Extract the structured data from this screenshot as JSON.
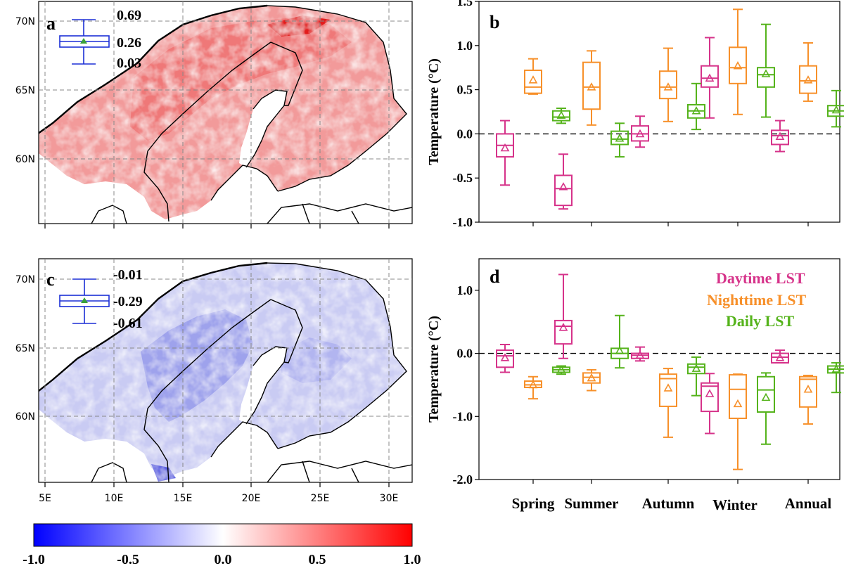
{
  "colors": {
    "daytime": "#d6338a",
    "nighttime": "#f7902a",
    "daily": "#55b31b",
    "inset_box": "#1b2fd6",
    "inset_mean": "#3aa13a",
    "warm": "#ff0000",
    "cool": "#0000ff"
  },
  "map_a": {
    "letter": "a",
    "mode": "warm",
    "inset": {
      "max": "0.69",
      "median": "0.26",
      "min": "0.03"
    }
  },
  "map_c": {
    "letter": "c",
    "mode": "cool",
    "inset": {
      "max": "-0.01",
      "median": "-0.29",
      "min": "-0.61"
    }
  },
  "map_axes": {
    "lat_labels": [
      "70N",
      "65N",
      "60N"
    ],
    "lat_values": [
      70,
      65,
      60
    ],
    "lon_labels": [
      "5E",
      "10E",
      "15E",
      "20E",
      "25E",
      "30E"
    ],
    "lon_values": [
      5,
      10,
      15,
      20,
      25,
      30
    ],
    "lon_range": [
      5,
      32
    ],
    "lat_range": [
      55,
      71
    ]
  },
  "colorbar": {
    "range": [
      -1.0,
      1.0
    ],
    "tick_labels": [
      "-1.0",
      "-0.5",
      "0.0",
      "0.5",
      "1.0"
    ],
    "tick_values": [
      -1.0,
      -0.5,
      0.0,
      0.5,
      1.0
    ]
  },
  "chart_data": [
    {
      "type": "box",
      "panel": "b",
      "ylabel": "Temperature (°C)",
      "ylim": [
        -1.0,
        1.5
      ],
      "yticks": [
        -1.0,
        -0.5,
        0.0,
        0.5,
        1.0,
        1.5
      ],
      "ytick_labels": [
        "-1.0",
        "-0.5",
        "0.0",
        "0.5",
        "1.0",
        "1.5"
      ],
      "reference_line": 0.0,
      "categories": [
        "Spring",
        "Summer",
        "Autumn",
        "Winter",
        "Annual"
      ],
      "series": [
        {
          "key": "daytime",
          "boxes": [
            {
              "min": -0.58,
              "q1": -0.26,
              "median": -0.13,
              "q3": 0.0,
              "max": 0.15,
              "mean": -0.16
            },
            {
              "min": -0.85,
              "q1": -0.81,
              "median": -0.62,
              "q3": -0.47,
              "max": -0.23,
              "mean": -0.6
            },
            {
              "min": -0.15,
              "q1": -0.08,
              "median": 0.0,
              "q3": 0.09,
              "max": 0.2,
              "mean": 0.0
            },
            {
              "min": 0.18,
              "q1": 0.53,
              "median": 0.63,
              "q3": 0.77,
              "max": 1.09,
              "mean": 0.63
            },
            {
              "min": -0.2,
              "q1": -0.12,
              "median": -0.02,
              "q3": 0.04,
              "max": 0.15,
              "mean": -0.03
            }
          ]
        },
        {
          "key": "nighttime",
          "boxes": [
            {
              "min": 0.45,
              "q1": 0.46,
              "median": 0.53,
              "q3": 0.72,
              "max": 0.85,
              "mean": 0.61
            },
            {
              "min": 0.1,
              "q1": 0.28,
              "median": 0.53,
              "q3": 0.81,
              "max": 0.94,
              "mean": 0.53
            },
            {
              "min": 0.14,
              "q1": 0.4,
              "median": 0.53,
              "q3": 0.71,
              "max": 0.97,
              "mean": 0.53
            },
            {
              "min": 0.22,
              "q1": 0.57,
              "median": 0.75,
              "q3": 0.98,
              "max": 1.41,
              "mean": 0.77
            },
            {
              "min": 0.37,
              "q1": 0.46,
              "median": 0.6,
              "q3": 0.77,
              "max": 1.03,
              "mean": 0.61
            }
          ]
        },
        {
          "key": "daily",
          "boxes": [
            {
              "min": 0.12,
              "q1": 0.15,
              "median": 0.19,
              "q3": 0.26,
              "max": 0.29,
              "mean": 0.21
            },
            {
              "min": -0.26,
              "q1": -0.12,
              "median": -0.06,
              "q3": 0.03,
              "max": 0.12,
              "mean": -0.05
            },
            {
              "min": 0.05,
              "q1": 0.18,
              "median": 0.26,
              "q3": 0.33,
              "max": 0.57,
              "mean": 0.26
            },
            {
              "min": 0.19,
              "q1": 0.53,
              "median": 0.67,
              "q3": 0.75,
              "max": 1.24,
              "mean": 0.68
            },
            {
              "min": 0.08,
              "q1": 0.2,
              "median": 0.26,
              "q3": 0.32,
              "max": 0.49,
              "mean": 0.27
            }
          ]
        }
      ]
    },
    {
      "type": "box",
      "panel": "d",
      "ylabel": "Temperature (°C)",
      "ylim": [
        -2.0,
        1.5
      ],
      "yticks": [
        -2.0,
        -1.0,
        0.0,
        1.0
      ],
      "ytick_labels": [
        "-2.0",
        "-1.0",
        "0.0",
        "1.0"
      ],
      "reference_line": 0.0,
      "categories": [
        "Spring",
        "Summer",
        "Autumn",
        "Winter",
        "Annual"
      ],
      "legend_position": "top-right",
      "legend": [
        {
          "key": "daytime",
          "label": "Daytime LST"
        },
        {
          "key": "nighttime",
          "label": "Nighttime LST"
        },
        {
          "key": "daily",
          "label": "Daily LST"
        }
      ],
      "series": [
        {
          "key": "daytime",
          "boxes": [
            {
              "min": -0.3,
              "q1": -0.22,
              "median": -0.04,
              "q3": 0.05,
              "max": 0.14,
              "mean": -0.07
            },
            {
              "min": -0.08,
              "q1": 0.15,
              "median": 0.43,
              "q3": 0.52,
              "max": 1.25,
              "mean": 0.41
            },
            {
              "min": -0.12,
              "q1": -0.08,
              "median": -0.03,
              "q3": 0.0,
              "max": 0.1,
              "mean": -0.03
            },
            {
              "min": -1.27,
              "q1": -0.92,
              "median": -0.52,
              "q3": -0.47,
              "max": -0.32,
              "mean": -0.64
            },
            {
              "min": -0.15,
              "q1": -0.15,
              "median": -0.06,
              "q3": 0.0,
              "max": 0.05,
              "mean": -0.07
            }
          ]
        },
        {
          "key": "nighttime",
          "boxes": [
            {
              "min": -0.72,
              "q1": -0.54,
              "median": -0.5,
              "q3": -0.44,
              "max": -0.37,
              "mean": -0.5
            },
            {
              "min": -0.59,
              "q1": -0.47,
              "median": -0.38,
              "q3": -0.31,
              "max": -0.26,
              "mean": -0.39
            },
            {
              "min": -1.33,
              "q1": -0.84,
              "median": -0.4,
              "q3": -0.33,
              "max": -0.24,
              "mean": -0.55
            },
            {
              "min": -1.84,
              "q1": -1.03,
              "median": -0.57,
              "q3": -0.34,
              "max": -0.33,
              "mean": -0.8
            },
            {
              "min": -1.12,
              "q1": -0.85,
              "median": -0.41,
              "q3": -0.37,
              "max": -0.35,
              "mean": -0.57
            }
          ]
        },
        {
          "key": "daily",
          "boxes": [
            {
              "min": -0.33,
              "q1": -0.3,
              "median": -0.26,
              "q3": -0.22,
              "max": -0.2,
              "mean": -0.26
            },
            {
              "min": -0.23,
              "q1": -0.08,
              "median": 0.0,
              "q3": 0.08,
              "max": 0.6,
              "mean": 0.04
            },
            {
              "min": -0.67,
              "q1": -0.32,
              "median": -0.22,
              "q3": -0.17,
              "max": -0.06,
              "mean": -0.24
            },
            {
              "min": -1.44,
              "q1": -0.93,
              "median": -0.58,
              "q3": -0.37,
              "max": -0.31,
              "mean": -0.7
            },
            {
              "min": -0.62,
              "q1": -0.31,
              "median": -0.25,
              "q3": -0.2,
              "max": -0.15,
              "mean": -0.25
            }
          ]
        }
      ]
    }
  ]
}
